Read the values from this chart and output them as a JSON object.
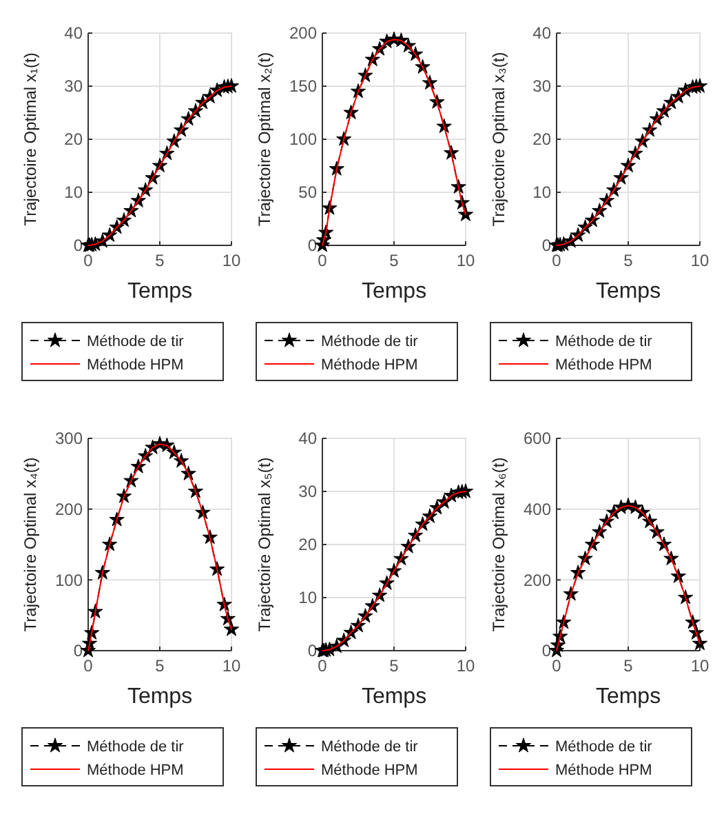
{
  "chart_data": [
    {
      "type": "line",
      "ylabel": "Trajectoire Optimal x₁(t)",
      "xlabel": "Temps",
      "xlim": [
        0,
        10
      ],
      "xticks": [
        0,
        5,
        10
      ],
      "ylim": [
        0,
        40
      ],
      "yticks": [
        0,
        10,
        20,
        30,
        40
      ],
      "grid": true,
      "legend": "bottom",
      "x": [
        0,
        0.1,
        0.25,
        0.5,
        1,
        1.5,
        2,
        2.5,
        3,
        3.5,
        4,
        4.5,
        5,
        5.5,
        6,
        6.5,
        7,
        7.5,
        8,
        8.5,
        9,
        9.5,
        9.75,
        10
      ],
      "series": [
        {
          "name": "Méthode de tir",
          "color": "#000000",
          "marker": "star",
          "line_style": "dashed",
          "values": [
            0,
            0,
            0.1,
            0.2,
            0.8,
            1.9,
            3.4,
            4.7,
            6.5,
            8.4,
            10.4,
            12.7,
            15,
            17.3,
            19.6,
            21.7,
            23.8,
            25.3,
            26.9,
            28,
            29.2,
            29.8,
            29.9,
            30
          ]
        },
        {
          "name": "Méthode HPM",
          "color": "#ff0000",
          "marker": "none",
          "line_style": "solid",
          "values": [
            0,
            0,
            0.1,
            0.2,
            0.8,
            1.9,
            3.4,
            4.7,
            6.5,
            8.4,
            10.4,
            12.7,
            15,
            17.3,
            19.6,
            21.7,
            23.8,
            25.3,
            26.9,
            28,
            29.2,
            29.8,
            29.9,
            30
          ]
        }
      ]
    },
    {
      "type": "line",
      "ylabel": "Trajectoire Optimal x₂(t)",
      "xlabel": "Temps",
      "xlim": [
        0,
        10
      ],
      "xticks": [
        0,
        5,
        10
      ],
      "ylim": [
        0,
        200
      ],
      "yticks": [
        0,
        50,
        100,
        150,
        200
      ],
      "grid": true,
      "legend": "bottom",
      "x": [
        0,
        0.1,
        0.25,
        0.5,
        1,
        1.5,
        2,
        2.5,
        3,
        3.5,
        4,
        4.5,
        5,
        5.5,
        6,
        6.5,
        7,
        7.5,
        8,
        8.5,
        9,
        9.5,
        9.75,
        10
      ],
      "series": [
        {
          "name": "Méthode de tir",
          "color": "#000000",
          "marker": "star",
          "line_style": "dashed",
          "values": [
            0,
            5,
            12,
            35,
            72,
            100,
            125,
            145,
            160,
            175,
            185,
            192,
            194,
            193,
            188,
            180,
            168,
            153,
            135,
            112,
            87,
            55,
            40,
            29
          ]
        },
        {
          "name": "Méthode HPM",
          "color": "#ff0000",
          "marker": "none",
          "line_style": "solid",
          "values": [
            0,
            5,
            12,
            35,
            72,
            100,
            125,
            145,
            160,
            175,
            185,
            192,
            194,
            193,
            188,
            180,
            168,
            153,
            135,
            112,
            87,
            55,
            40,
            29
          ]
        }
      ]
    },
    {
      "type": "line",
      "ylabel": "Trajectoire Optimal x₃(t)",
      "xlabel": "Temps",
      "xlim": [
        0,
        10
      ],
      "xticks": [
        0,
        5,
        10
      ],
      "ylim": [
        0,
        40
      ],
      "yticks": [
        0,
        10,
        20,
        30,
        40
      ],
      "grid": true,
      "legend": "bottom",
      "x": [
        0,
        0.1,
        0.25,
        0.5,
        1,
        1.5,
        2,
        2.5,
        3,
        3.5,
        4,
        4.5,
        5,
        5.5,
        6,
        6.5,
        7,
        7.5,
        8,
        8.5,
        9,
        9.5,
        9.75,
        10
      ],
      "series": [
        {
          "name": "Méthode de tir",
          "color": "#000000",
          "marker": "star",
          "line_style": "dashed",
          "values": [
            0,
            0,
            0.1,
            0.2,
            0.8,
            1.9,
            3.4,
            4.7,
            6.5,
            8.4,
            10.4,
            12.7,
            15,
            17.3,
            19.6,
            21.7,
            23.8,
            25.3,
            26.9,
            28,
            29.2,
            29.8,
            29.9,
            30
          ]
        },
        {
          "name": "Méthode HPM",
          "color": "#ff0000",
          "marker": "none",
          "line_style": "solid",
          "values": [
            0,
            0,
            0.1,
            0.2,
            0.8,
            1.9,
            3.4,
            4.7,
            6.5,
            8.4,
            10.4,
            12.7,
            15,
            17.3,
            19.6,
            21.7,
            23.8,
            25.3,
            26.9,
            28,
            29.2,
            29.8,
            29.9,
            30
          ]
        }
      ]
    },
    {
      "type": "line",
      "ylabel": "Trajectoire Optimal x₄(t)",
      "xlabel": "Temps",
      "xlim": [
        0,
        10
      ],
      "xticks": [
        0,
        5,
        10
      ],
      "ylim": [
        0,
        300
      ],
      "yticks": [
        0,
        100,
        200,
        300
      ],
      "grid": true,
      "legend": "bottom",
      "x": [
        0,
        0.1,
        0.25,
        0.5,
        1,
        1.5,
        2,
        2.5,
        3,
        3.5,
        4,
        4.5,
        5,
        5.5,
        6,
        6.5,
        7,
        7.5,
        8,
        8.5,
        9,
        9.5,
        9.75,
        10
      ],
      "series": [
        {
          "name": "Méthode de tir",
          "color": "#000000",
          "marker": "star",
          "line_style": "dashed",
          "values": [
            0,
            10,
            25,
            55,
            110,
            150,
            185,
            218,
            240,
            260,
            275,
            287,
            292,
            290,
            280,
            268,
            250,
            225,
            195,
            160,
            115,
            65,
            45,
            30
          ]
        },
        {
          "name": "Méthode HPM",
          "color": "#ff0000",
          "marker": "none",
          "line_style": "solid",
          "values": [
            0,
            10,
            25,
            55,
            110,
            150,
            185,
            218,
            240,
            260,
            275,
            287,
            292,
            290,
            280,
            268,
            250,
            225,
            195,
            160,
            115,
            65,
            45,
            30
          ]
        }
      ]
    },
    {
      "type": "line",
      "ylabel": "Trajectoire Optimal x₅(t)",
      "xlabel": "Temps",
      "xlim": [
        0,
        10
      ],
      "xticks": [
        0,
        5,
        10
      ],
      "ylim": [
        0,
        40
      ],
      "yticks": [
        0,
        10,
        20,
        30,
        40
      ],
      "grid": true,
      "legend": "bottom",
      "x": [
        0,
        0.1,
        0.25,
        0.5,
        1,
        1.5,
        2,
        2.5,
        3,
        3.5,
        4,
        4.5,
        5,
        5.5,
        6,
        6.5,
        7,
        7.5,
        8,
        8.5,
        9,
        9.5,
        9.75,
        10
      ],
      "series": [
        {
          "name": "Méthode de tir",
          "color": "#000000",
          "marker": "star",
          "line_style": "dashed",
          "values": [
            0,
            0,
            0.1,
            0.2,
            0.8,
            1.9,
            3.4,
            4.7,
            6.5,
            8.4,
            10.4,
            12.7,
            15,
            17.3,
            19.6,
            21.7,
            23.8,
            25.3,
            26.9,
            28,
            29.2,
            29.8,
            29.9,
            30
          ]
        },
        {
          "name": "Méthode HPM",
          "color": "#ff0000",
          "marker": "none",
          "line_style": "solid",
          "values": [
            0,
            0,
            0.1,
            0.2,
            0.8,
            1.9,
            3.4,
            4.7,
            6.5,
            8.4,
            10.4,
            12.7,
            15,
            17.3,
            19.6,
            21.7,
            23.8,
            25.3,
            26.9,
            28,
            29.2,
            29.8,
            29.9,
            30
          ]
        }
      ]
    },
    {
      "type": "line",
      "ylabel": "Trajectoire Optimal x₆(t)",
      "xlabel": "Temps",
      "xlim": [
        0,
        10
      ],
      "xticks": [
        0,
        5,
        10
      ],
      "ylim": [
        0,
        600
      ],
      "yticks": [
        0,
        200,
        400,
        600
      ],
      "grid": true,
      "legend": "bottom",
      "x": [
        0,
        0.1,
        0.25,
        0.5,
        1,
        1.5,
        2,
        2.5,
        3,
        3.5,
        4,
        4.5,
        5,
        5.5,
        6,
        6.5,
        7,
        7.5,
        8,
        8.5,
        9,
        9.5,
        9.75,
        10
      ],
      "series": [
        {
          "name": "Méthode de tir",
          "color": "#000000",
          "marker": "star",
          "line_style": "dashed",
          "values": [
            0,
            15,
            40,
            80,
            160,
            220,
            260,
            300,
            335,
            365,
            390,
            405,
            410,
            405,
            390,
            365,
            335,
            300,
            260,
            210,
            150,
            80,
            50,
            20
          ]
        },
        {
          "name": "Méthode HPM",
          "color": "#ff0000",
          "marker": "none",
          "line_style": "solid",
          "values": [
            0,
            15,
            40,
            80,
            160,
            220,
            260,
            300,
            335,
            365,
            390,
            405,
            410,
            405,
            390,
            365,
            335,
            300,
            260,
            210,
            150,
            80,
            50,
            20
          ]
        }
      ]
    }
  ]
}
